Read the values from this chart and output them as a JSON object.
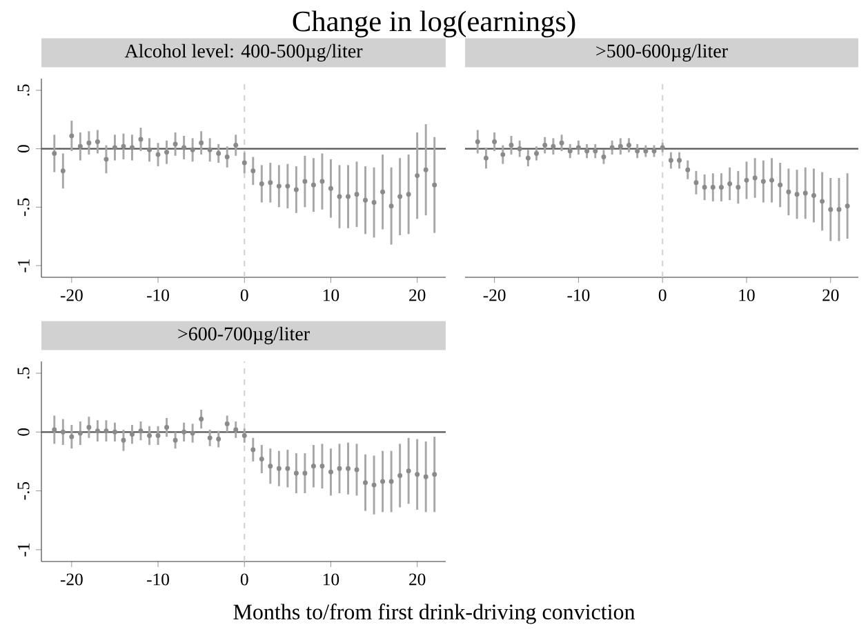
{
  "chart_data": [
    {
      "type": "scatter",
      "title": "Change in log(earnings)",
      "subtitle": "Alcohol level: 400-500µg/liter",
      "marker": "circle",
      "x": [
        -22,
        -21,
        -20,
        -19,
        -18,
        -17,
        -16,
        -15,
        -14,
        -13,
        -12,
        -11,
        -10,
        -9,
        -8,
        -7,
        -6,
        -5,
        -4,
        -3,
        -2,
        -1,
        0,
        1,
        2,
        3,
        4,
        5,
        6,
        7,
        8,
        9,
        10,
        11,
        12,
        13,
        14,
        15,
        16,
        17,
        18,
        19,
        20,
        21,
        22
      ],
      "series": [
        {
          "color": "#8a8a8a",
          "values": [
            -0.04,
            -0.19,
            0.11,
            0.02,
            0.05,
            0.06,
            -0.09,
            0.01,
            0.02,
            0.01,
            0.08,
            -0.01,
            -0.05,
            -0.03,
            0.04,
            0.01,
            -0.01,
            0.05,
            -0.01,
            -0.04,
            -0.07,
            0.03,
            -0.12,
            -0.19,
            -0.3,
            -0.29,
            -0.32,
            -0.32,
            -0.35,
            -0.28,
            -0.31,
            -0.28,
            -0.34,
            -0.41,
            -0.41,
            -0.39,
            -0.44,
            -0.46,
            -0.37,
            -0.49,
            -0.41,
            -0.39,
            -0.23,
            -0.18,
            -0.31
          ],
          "errors": [
            0.16,
            0.15,
            0.13,
            0.12,
            0.1,
            0.1,
            0.12,
            0.11,
            0.11,
            0.11,
            0.1,
            0.1,
            0.1,
            0.1,
            0.1,
            0.1,
            0.1,
            0.1,
            0.1,
            0.08,
            0.09,
            0.09,
            0.09,
            0.12,
            0.16,
            0.17,
            0.18,
            0.19,
            0.2,
            0.22,
            0.23,
            0.24,
            0.25,
            0.27,
            0.27,
            0.28,
            0.29,
            0.3,
            0.32,
            0.33,
            0.33,
            0.34,
            0.37,
            0.39,
            0.41
          ]
        }
      ],
      "xlim": [
        -23.5,
        23.3
      ],
      "ylim": [
        -1.1,
        0.6
      ],
      "xticks": [
        -20,
        -10,
        0,
        10,
        20
      ],
      "yticks": [
        {
          "value": -1,
          "label": "-1"
        },
        {
          "value": -0.5,
          "label": "-.5"
        },
        {
          "value": 0,
          "label": "0"
        },
        {
          "value": 0.5,
          "label": ".5"
        }
      ],
      "ref_lines": [
        {
          "axis": "y",
          "value": 0,
          "color": "#555555",
          "line_style": "solid"
        },
        {
          "axis": "x",
          "value": 0,
          "color": "#d4d4d4",
          "line_style": "dashed"
        }
      ]
    },
    {
      "type": "scatter",
      "subtitle": ">500-600µg/liter",
      "marker": "circle",
      "tick_labels": "x",
      "x": [
        -22,
        -21,
        -20,
        -19,
        -18,
        -17,
        -16,
        -15,
        -14,
        -13,
        -12,
        -11,
        -10,
        -9,
        -8,
        -7,
        -6,
        -5,
        -4,
        -3,
        -2,
        -1,
        0,
        1,
        2,
        3,
        4,
        5,
        6,
        7,
        8,
        9,
        10,
        11,
        12,
        13,
        14,
        15,
        16,
        17,
        18,
        19,
        20,
        21,
        22
      ],
      "series": [
        {
          "color": "#8a8a8a",
          "values": [
            0.06,
            -0.08,
            0.06,
            -0.05,
            0.03,
            0.0,
            -0.08,
            -0.04,
            0.03,
            0.02,
            0.05,
            -0.02,
            0.01,
            -0.02,
            -0.02,
            -0.07,
            0.01,
            0.02,
            0.03,
            -0.02,
            -0.02,
            -0.02,
            0.01,
            -0.1,
            -0.1,
            -0.18,
            -0.29,
            -0.33,
            -0.33,
            -0.33,
            -0.3,
            -0.33,
            -0.27,
            -0.25,
            -0.28,
            -0.27,
            -0.31,
            -0.37,
            -0.39,
            -0.38,
            -0.4,
            -0.45,
            -0.52,
            -0.52,
            -0.49
          ],
          "errors": [
            0.1,
            0.09,
            0.08,
            0.08,
            0.08,
            0.07,
            0.07,
            0.06,
            0.07,
            0.07,
            0.07,
            0.06,
            0.06,
            0.06,
            0.06,
            0.06,
            0.06,
            0.07,
            0.06,
            0.06,
            0.05,
            0.05,
            0.04,
            0.07,
            0.07,
            0.08,
            0.1,
            0.11,
            0.12,
            0.12,
            0.14,
            0.14,
            0.16,
            0.17,
            0.18,
            0.19,
            0.19,
            0.2,
            0.21,
            0.22,
            0.23,
            0.25,
            0.27,
            0.27,
            0.28
          ]
        }
      ],
      "xlim": [
        -23.5,
        23.3
      ],
      "ylim": [
        -1.1,
        0.6
      ],
      "xticks": [
        -20,
        -10,
        0,
        10,
        20
      ],
      "ref_lines": [
        {
          "axis": "y",
          "value": 0,
          "color": "#555555",
          "line_style": "solid"
        },
        {
          "axis": "x",
          "value": 0,
          "color": "#d4d4d4",
          "line_style": "dashed"
        }
      ]
    },
    {
      "type": "scatter",
      "subtitle": ">600-700µg/liter",
      "xlabel": "Months to/from first drink-driving conviction",
      "marker": "circle",
      "x": [
        -22,
        -21,
        -20,
        -19,
        -18,
        -17,
        -16,
        -15,
        -14,
        -13,
        -12,
        -11,
        -10,
        -9,
        -8,
        -7,
        -6,
        -5,
        -4,
        -3,
        -2,
        -1,
        0,
        1,
        2,
        3,
        4,
        5,
        6,
        7,
        8,
        9,
        10,
        11,
        12,
        13,
        14,
        15,
        16,
        17,
        18,
        19,
        20,
        21,
        22
      ],
      "series": [
        {
          "color": "#8a8a8a",
          "values": [
            0.02,
            0.0,
            -0.04,
            -0.01,
            0.04,
            0.01,
            0.01,
            0.0,
            -0.07,
            -0.02,
            0.01,
            -0.03,
            -0.03,
            0.04,
            -0.07,
            0.0,
            -0.01,
            0.11,
            -0.05,
            -0.06,
            0.07,
            0.02,
            -0.03,
            -0.15,
            -0.23,
            -0.29,
            -0.31,
            -0.31,
            -0.35,
            -0.35,
            -0.29,
            -0.29,
            -0.34,
            -0.31,
            -0.31,
            -0.32,
            -0.43,
            -0.45,
            -0.42,
            -0.42,
            -0.37,
            -0.33,
            -0.36,
            -0.38,
            -0.36
          ],
          "errors": [
            0.12,
            0.11,
            0.1,
            0.1,
            0.09,
            0.09,
            0.09,
            0.08,
            0.09,
            0.08,
            0.08,
            0.08,
            0.08,
            0.08,
            0.07,
            0.08,
            0.08,
            0.08,
            0.07,
            0.07,
            0.07,
            0.07,
            0.06,
            0.1,
            0.12,
            0.15,
            0.15,
            0.16,
            0.17,
            0.17,
            0.18,
            0.19,
            0.2,
            0.21,
            0.22,
            0.22,
            0.24,
            0.25,
            0.26,
            0.26,
            0.27,
            0.28,
            0.3,
            0.3,
            0.32
          ]
        }
      ],
      "xlim": [
        -23.5,
        23.3
      ],
      "ylim": [
        -1.1,
        0.6
      ],
      "xticks": [
        -20,
        -10,
        0,
        10,
        20
      ],
      "yticks": [
        {
          "value": -1,
          "label": "-1"
        },
        {
          "value": -0.5,
          "label": "-.5"
        },
        {
          "value": 0,
          "label": "0"
        },
        {
          "value": 0.5,
          "label": ".5"
        }
      ],
      "ref_lines": [
        {
          "axis": "y",
          "value": 0,
          "color": "#555555",
          "line_style": "solid"
        },
        {
          "axis": "x",
          "value": 0,
          "color": "#d4d4d4",
          "line_style": "dashed"
        }
      ]
    }
  ]
}
